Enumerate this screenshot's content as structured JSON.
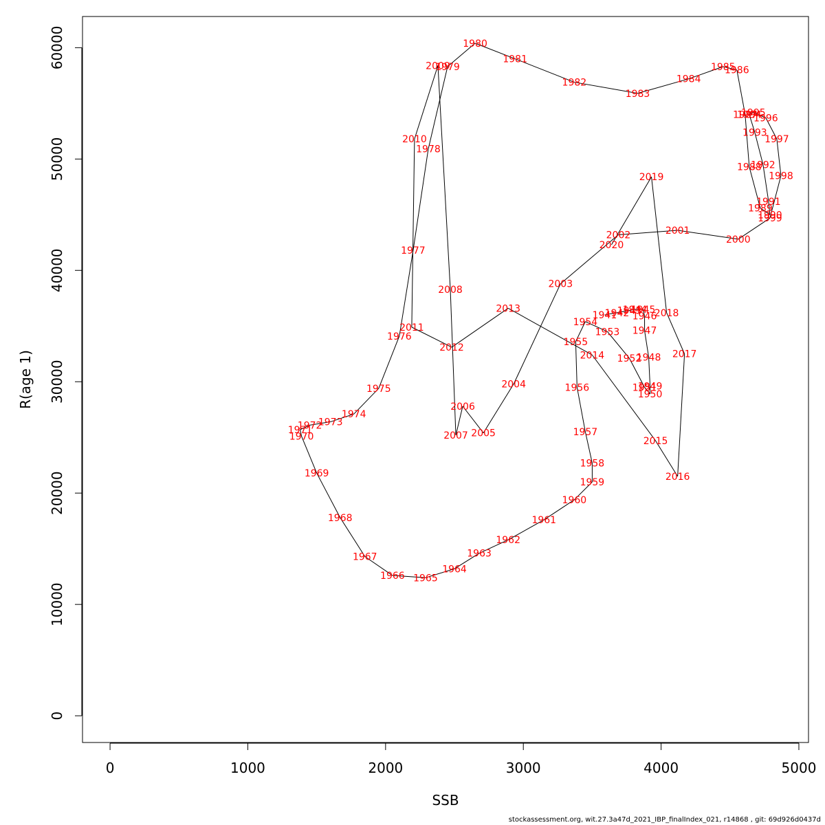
{
  "chart_data": {
    "type": "line",
    "title": "",
    "xlabel": "SSB",
    "ylabel": "R(age 1)",
    "xlim": [
      -200,
      5070
    ],
    "ylim": [
      -2400,
      62800
    ],
    "xticks": [
      0,
      1000,
      2000,
      3000,
      4000,
      5000
    ],
    "yticks": [
      0,
      10000,
      20000,
      30000,
      40000,
      50000,
      60000
    ],
    "xtick_labels": [
      "0",
      "1000",
      "2000",
      "3000",
      "4000",
      "5000"
    ],
    "ytick_labels": [
      "0",
      "10000",
      "20000",
      "30000",
      "40000",
      "50000",
      "60000"
    ],
    "grid": false,
    "point_labels_color": "#ff0000",
    "line_color": "#000000",
    "points": [
      {
        "year": "1941",
        "x": 3590,
        "y": 36000
      },
      {
        "year": "1942",
        "x": 3680,
        "y": 36200
      },
      {
        "year": "1943",
        "x": 3770,
        "y": 36400
      },
      {
        "year": "1944",
        "x": 3810,
        "y": 36500
      },
      {
        "year": "1945",
        "x": 3870,
        "y": 36500
      },
      {
        "year": "1946",
        "x": 3880,
        "y": 35900
      },
      {
        "year": "1947",
        "x": 3880,
        "y": 34600
      },
      {
        "year": "1948",
        "x": 3910,
        "y": 32200
      },
      {
        "year": "1949",
        "x": 3920,
        "y": 29600
      },
      {
        "year": "1950",
        "x": 3920,
        "y": 28900
      },
      {
        "year": "1951",
        "x": 3880,
        "y": 29500
      },
      {
        "year": "1952",
        "x": 3770,
        "y": 32100
      },
      {
        "year": "1953",
        "x": 3610,
        "y": 34500
      },
      {
        "year": "1954",
        "x": 3450,
        "y": 35400
      },
      {
        "year": "1955",
        "x": 3380,
        "y": 33600
      },
      {
        "year": "1956",
        "x": 3390,
        "y": 29500
      },
      {
        "year": "1957",
        "x": 3450,
        "y": 25500
      },
      {
        "year": "1958",
        "x": 3500,
        "y": 22700
      },
      {
        "year": "1959",
        "x": 3500,
        "y": 21000
      },
      {
        "year": "1960",
        "x": 3370,
        "y": 19400
      },
      {
        "year": "1961",
        "x": 3150,
        "y": 17600
      },
      {
        "year": "1962",
        "x": 2890,
        "y": 15800
      },
      {
        "year": "1963",
        "x": 2680,
        "y": 14600
      },
      {
        "year": "1964",
        "x": 2500,
        "y": 13200
      },
      {
        "year": "1965",
        "x": 2290,
        "y": 12400
      },
      {
        "year": "1966",
        "x": 2050,
        "y": 12600
      },
      {
        "year": "1967",
        "x": 1850,
        "y": 14300
      },
      {
        "year": "1968",
        "x": 1670,
        "y": 17800
      },
      {
        "year": "1969",
        "x": 1500,
        "y": 21800
      },
      {
        "year": "1970",
        "x": 1390,
        "y": 25100
      },
      {
        "year": "1971",
        "x": 1380,
        "y": 25700
      },
      {
        "year": "1972",
        "x": 1450,
        "y": 26100
      },
      {
        "year": "1973",
        "x": 1600,
        "y": 26400
      },
      {
        "year": "1974",
        "x": 1770,
        "y": 27100
      },
      {
        "year": "1975",
        "x": 1950,
        "y": 29400
      },
      {
        "year": "1976",
        "x": 2100,
        "y": 34100
      },
      {
        "year": "1977",
        "x": 2200,
        "y": 41800
      },
      {
        "year": "1978",
        "x": 2310,
        "y": 50900
      },
      {
        "year": "1979",
        "x": 2450,
        "y": 58300
      },
      {
        "year": "1980",
        "x": 2650,
        "y": 60400
      },
      {
        "year": "1981",
        "x": 2940,
        "y": 59000
      },
      {
        "year": "1982",
        "x": 3370,
        "y": 56900
      },
      {
        "year": "1983",
        "x": 3830,
        "y": 55900
      },
      {
        "year": "1984",
        "x": 4200,
        "y": 57200
      },
      {
        "year": "1985",
        "x": 4450,
        "y": 58300
      },
      {
        "year": "1986",
        "x": 4550,
        "y": 58000
      },
      {
        "year": "1987",
        "x": 4610,
        "y": 54000
      },
      {
        "year": "1988",
        "x": 4640,
        "y": 49300
      },
      {
        "year": "1989",
        "x": 4720,
        "y": 45600
      },
      {
        "year": "1990",
        "x": 4790,
        "y": 45000
      },
      {
        "year": "1991",
        "x": 4780,
        "y": 46200
      },
      {
        "year": "1992",
        "x": 4740,
        "y": 49500
      },
      {
        "year": "1993",
        "x": 4680,
        "y": 52400
      },
      {
        "year": "1994",
        "x": 4640,
        "y": 54000
      },
      {
        "year": "1995",
        "x": 4670,
        "y": 54200
      },
      {
        "year": "1996",
        "x": 4760,
        "y": 53700
      },
      {
        "year": "1997",
        "x": 4840,
        "y": 51800
      },
      {
        "year": "1998",
        "x": 4870,
        "y": 48500
      },
      {
        "year": "1999",
        "x": 4790,
        "y": 44700
      },
      {
        "year": "2000",
        "x": 4560,
        "y": 42800
      },
      {
        "year": "2001",
        "x": 4120,
        "y": 43600
      },
      {
        "year": "2002",
        "x": 3690,
        "y": 43200
      },
      {
        "year": "2003",
        "x": 3270,
        "y": 38800
      },
      {
        "year": "2004",
        "x": 2930,
        "y": 29800
      },
      {
        "year": "2005",
        "x": 2710,
        "y": 25400
      },
      {
        "year": "2006",
        "x": 2560,
        "y": 27800
      },
      {
        "year": "2007",
        "x": 2510,
        "y": 25200
      },
      {
        "year": "2008",
        "x": 2470,
        "y": 38300
      },
      {
        "year": "2009",
        "x": 2380,
        "y": 58400
      },
      {
        "year": "2010",
        "x": 2210,
        "y": 51800
      },
      {
        "year": "2011",
        "x": 2190,
        "y": 34900
      },
      {
        "year": "2012",
        "x": 2480,
        "y": 33100
      },
      {
        "year": "2013",
        "x": 2890,
        "y": 36600
      },
      {
        "year": "2014",
        "x": 3500,
        "y": 32400
      },
      {
        "year": "2015",
        "x": 3960,
        "y": 24700
      },
      {
        "year": "2016",
        "x": 4120,
        "y": 21500
      },
      {
        "year": "2017",
        "x": 4170,
        "y": 32500
      },
      {
        "year": "2018",
        "x": 4040,
        "y": 36200
      },
      {
        "year": "2019",
        "x": 3930,
        "y": 48400
      },
      {
        "year": "2020",
        "x": 3640,
        "y": 42300
      }
    ]
  },
  "footer_text": "stockassessment.org, wit.27.3a47d_2021_IBP_finalIndex_021, r14868 , git: 69d926d0437d"
}
